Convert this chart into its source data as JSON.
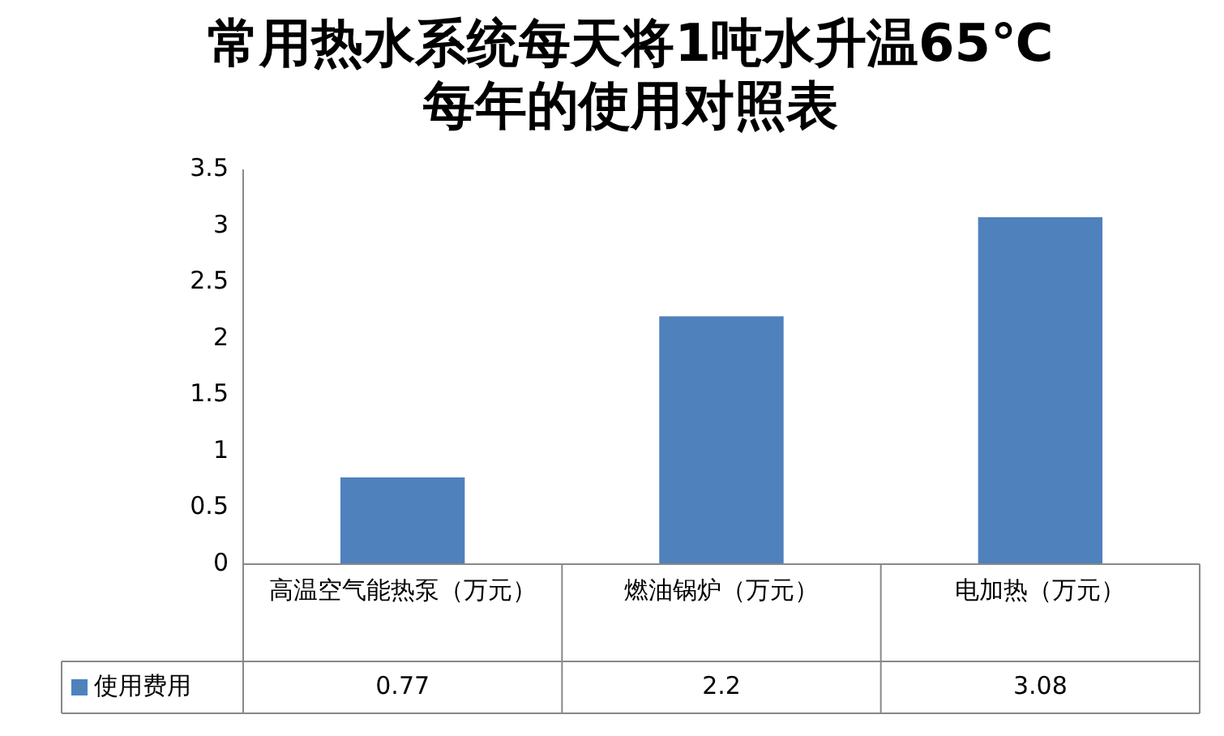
{
  "chart_data": {
    "type": "bar",
    "title": "常用热水系统每天将1吨水升温65℃\n每年的使用对照表",
    "categories": [
      "高温空气能热泵（万元）",
      "燃油锅炉（万元）",
      "电加热（万元）"
    ],
    "series": [
      {
        "name": "使用费用",
        "color": "#4f81bd",
        "values": [
          0.77,
          2.2,
          3.08
        ]
      }
    ],
    "ylim": [
      0,
      3.5
    ],
    "yticks": [
      0,
      0.5,
      1,
      1.5,
      2,
      2.5,
      3,
      3.5
    ],
    "grid": false,
    "legend": "bottom",
    "data_labels": true
  }
}
